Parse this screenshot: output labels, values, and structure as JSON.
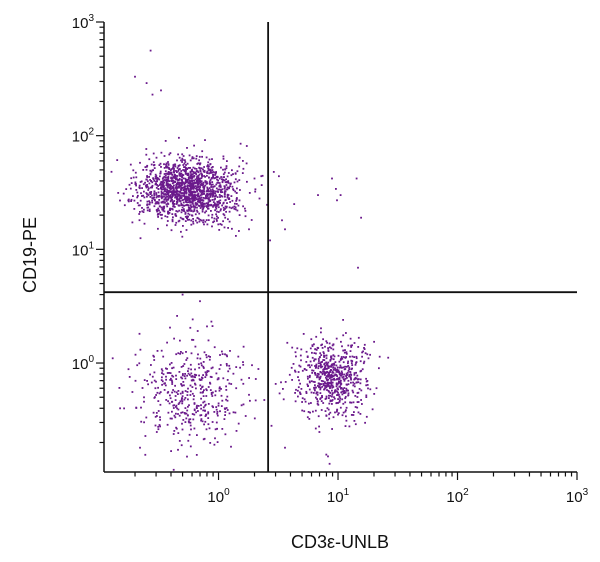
{
  "chart_data": {
    "type": "scatter",
    "title": "",
    "xlabel": "CD3ε-UNLB",
    "ylabel": "CD19-PE",
    "xscale": "log",
    "yscale": "log",
    "xlim": [
      0.11,
      1000
    ],
    "ylim": [
      0.11,
      1000
    ],
    "x_ticks": [
      {
        "base": "10",
        "exp": "0"
      },
      {
        "base": "10",
        "exp": "1"
      },
      {
        "base": "10",
        "exp": "2"
      },
      {
        "base": "10",
        "exp": "3"
      }
    ],
    "y_ticks": [
      {
        "base": "10",
        "exp": "0"
      },
      {
        "base": "10",
        "exp": "1"
      },
      {
        "base": "10",
        "exp": "2"
      },
      {
        "base": "10",
        "exp": "3"
      }
    ],
    "quadrant_gates": {
      "x": 2.6,
      "y": 4.2
    },
    "point_color": "#6b1a8c",
    "grid": false,
    "legend": "none",
    "populations": [
      {
        "description_value": "CD19+ CD3-",
        "x_center": 0.55,
        "y_center": 33,
        "x_spread_log": 0.2,
        "y_spread_log": 0.14,
        "count": 1500
      },
      {
        "description_value": "CD19- CD3+",
        "x_center": 9,
        "y_center": 0.75,
        "x_spread_log": 0.14,
        "y_spread_log": 0.17,
        "count": 650
      },
      {
        "description_value": "CD19- CD3-",
        "x_center": 0.6,
        "y_center": 0.55,
        "x_spread_log": 0.24,
        "y_spread_log": 0.22,
        "count": 450
      }
    ],
    "sparse_points": [
      [
        0.27,
        560
      ],
      [
        0.2,
        330
      ],
      [
        0.25,
        290
      ],
      [
        0.33,
        250
      ],
      [
        0.28,
        230
      ],
      [
        2.9,
        48
      ],
      [
        3.2,
        44
      ],
      [
        9.6,
        34
      ],
      [
        10.5,
        30
      ],
      [
        9.8,
        27
      ],
      [
        14.3,
        42
      ],
      [
        8.9,
        42
      ],
      [
        6.8,
        30
      ],
      [
        15.6,
        19
      ],
      [
        14.7,
        6.9
      ],
      [
        4.3,
        25
      ],
      [
        3.4,
        18
      ],
      [
        2.7,
        12
      ],
      [
        3.6,
        15
      ],
      [
        0.5,
        4.0
      ],
      [
        0.7,
        3.5
      ],
      [
        0.45,
        2.6
      ],
      [
        0.8,
        2.1
      ],
      [
        0.6,
        1.6
      ],
      [
        1.5,
        20
      ],
      [
        1.8,
        15
      ],
      [
        2.2,
        28
      ],
      [
        1.6,
        60
      ],
      [
        2.0,
        42
      ],
      [
        22,
        0.9
      ],
      [
        18,
        1.1
      ],
      [
        21,
        0.6
      ],
      [
        3.6,
        0.18
      ],
      [
        8.5,
        0.13
      ],
      [
        0.22,
        0.18
      ],
      [
        0.15,
        0.4
      ],
      [
        0.13,
        1.1
      ]
    ]
  }
}
